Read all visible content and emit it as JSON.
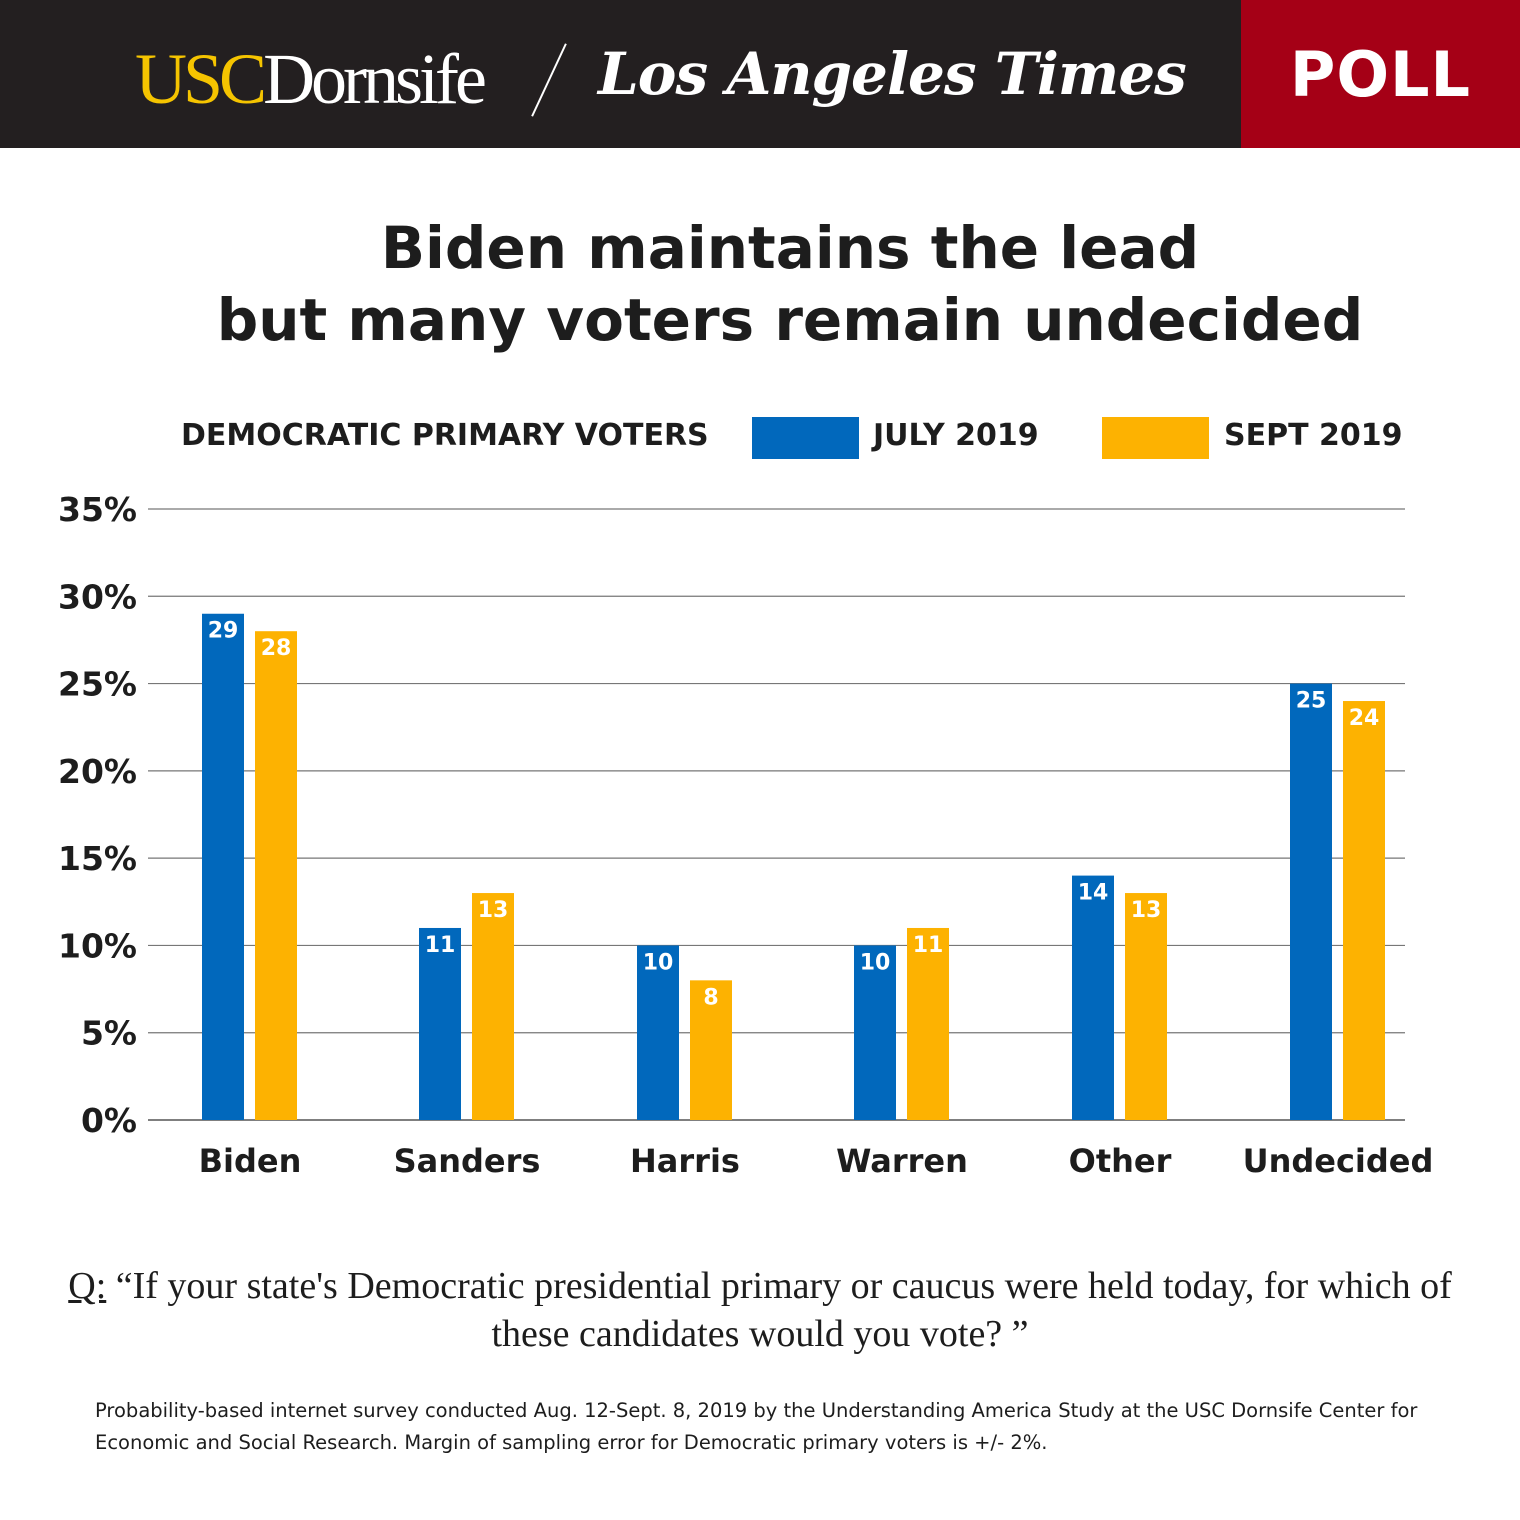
{
  "header": {
    "logo_usc_part1": "USC",
    "logo_usc_part2": "Dornsife",
    "logo_lat": "Los Angeles Times",
    "poll_label": "POLL"
  },
  "colors": {
    "july": "#0168bc",
    "sept": "#fdb201",
    "header_bg": "#231f20",
    "poll_bg": "#a50016"
  },
  "chart_data": {
    "type": "bar",
    "title_line1": "Biden maintains the lead",
    "title_line2": "but many voters remain undecided",
    "subgroup_label": "DEMOCRATIC PRIMARY VOTERS",
    "categories": [
      "Biden",
      "Sanders",
      "Harris",
      "Warren",
      "Other",
      "Undecided"
    ],
    "series": [
      {
        "name": "JULY 2019",
        "values": [
          29,
          11,
          10,
          10,
          14,
          25
        ]
      },
      {
        "name": "SEPT 2019",
        "values": [
          28,
          13,
          8,
          11,
          13,
          24
        ]
      }
    ],
    "ylim": [
      0,
      35
    ],
    "yticks": [
      "0%",
      "5%",
      "10%",
      "15%",
      "20%",
      "25%",
      "30%",
      "35%"
    ],
    "grid": true,
    "legend_placement": "top-right"
  },
  "question": {
    "prefix": "Q:",
    "text": "“If your state's Democratic presidential primary or caucus were held today, for which of these candidates would you vote?  ”"
  },
  "note": "Probability-based internet survey conducted Aug. 12-Sept. 8, 2019 by the Understanding America Study at the USC Dornsife Center for Economic and Social Research. Margin of sampling error for Democratic primary voters is +/- 2%."
}
